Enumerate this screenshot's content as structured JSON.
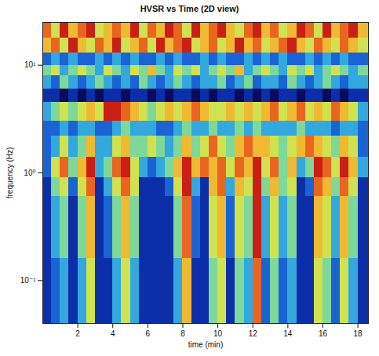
{
  "chart_data": {
    "type": "heatmap",
    "title": "HVSR vs Time (2D view)",
    "x_label": "time (min)",
    "y_label": "frequency (Hz)",
    "log": "y",
    "xlim": [
      0,
      18.6
    ],
    "ylim": [
      0.04,
      25
    ],
    "xticks": [
      2,
      4,
      6,
      8,
      10,
      12,
      14,
      16,
      18
    ],
    "yticks": [
      {
        "value": 0.1,
        "label": "10⁻¹"
      },
      {
        "value": 1,
        "label": "10⁰"
      },
      {
        "value": 10,
        "label": "10¹"
      }
    ],
    "zlim": [
      0,
      9
    ],
    "x_edges": [
      0,
      0.5,
      1,
      1.5,
      2,
      2.5,
      3,
      3.5,
      4,
      4.5,
      5,
      5.5,
      6,
      6.5,
      7,
      7.5,
      8,
      8.5,
      9,
      9.5,
      10,
      10.5,
      11,
      11.5,
      12,
      12.5,
      13,
      13.5,
      14,
      14.5,
      15,
      15.5,
      16,
      16.5,
      17,
      17.5,
      18,
      18.6
    ],
    "y_edges": [
      0.04,
      0.06,
      0.1,
      0.16,
      0.25,
      0.4,
      0.6,
      0.9,
      1.4,
      2.2,
      3,
      4.5,
      6,
      8,
      10,
      13,
      18,
      25
    ],
    "values": [
      [
        1,
        2,
        3,
        1,
        3,
        5,
        1,
        1,
        3,
        5,
        3,
        1,
        1,
        1,
        1,
        3,
        6,
        1,
        1,
        4,
        5,
        1,
        4,
        3,
        7,
        2,
        4,
        2,
        3,
        1,
        1,
        5,
        4,
        2,
        5,
        3,
        1
      ],
      [
        1,
        2,
        3,
        1,
        3,
        5,
        1,
        1,
        3,
        5,
        3,
        1,
        1,
        1,
        1,
        3,
        6,
        1,
        1,
        4,
        5,
        1,
        4,
        3,
        7,
        2,
        4,
        2,
        3,
        1,
        1,
        5,
        4,
        2,
        5,
        3,
        1
      ],
      [
        1,
        2,
        3,
        1,
        3,
        5,
        1,
        1,
        3,
        5,
        3,
        1,
        1,
        1,
        1,
        3,
        6,
        1,
        1,
        4,
        5,
        1,
        4,
        3,
        7,
        2,
        4,
        2,
        3,
        1,
        1,
        5,
        4,
        2,
        5,
        3,
        1
      ],
      [
        1,
        3,
        4,
        1,
        4,
        6,
        1,
        2,
        4,
        6,
        4,
        1,
        1,
        1,
        1,
        4,
        7,
        2,
        1,
        5,
        6,
        2,
        5,
        4,
        8,
        3,
        5,
        3,
        4,
        1,
        1,
        6,
        5,
        3,
        6,
        4,
        1
      ],
      [
        1,
        3,
        4,
        1,
        4,
        6,
        1,
        2,
        4,
        6,
        4,
        1,
        1,
        1,
        1,
        4,
        7,
        2,
        1,
        5,
        6,
        2,
        5,
        4,
        8,
        3,
        5,
        3,
        4,
        1,
        1,
        6,
        5,
        3,
        6,
        4,
        1
      ],
      [
        1,
        3,
        4,
        1,
        4,
        6,
        1,
        2,
        4,
        6,
        4,
        1,
        1,
        1,
        1,
        4,
        7,
        2,
        1,
        5,
        6,
        2,
        5,
        4,
        8,
        3,
        5,
        3,
        4,
        1,
        1,
        6,
        5,
        3,
        6,
        4,
        1
      ],
      [
        1,
        4,
        5,
        2,
        5,
        7,
        1,
        3,
        5,
        7,
        5,
        1,
        1,
        1,
        2,
        5,
        8,
        3,
        1,
        6,
        7,
        3,
        6,
        5,
        8,
        4,
        6,
        4,
        5,
        1,
        2,
        7,
        6,
        4,
        7,
        5,
        1
      ],
      [
        2,
        5,
        7,
        4,
        6,
        8,
        3,
        4,
        7,
        8,
        5,
        3,
        2,
        3,
        4,
        6,
        8,
        6,
        7,
        6,
        7,
        5,
        7,
        6,
        8,
        5,
        7,
        4,
        6,
        3,
        4,
        8,
        7,
        5,
        8,
        6,
        3
      ],
      [
        2,
        3,
        5,
        3,
        4,
        6,
        3,
        3,
        5,
        6,
        4,
        4,
        5,
        4,
        3,
        4,
        6,
        4,
        5,
        7,
        5,
        4,
        6,
        7,
        6,
        6,
        5,
        4,
        5,
        6,
        7,
        6,
        5,
        4,
        6,
        5,
        2
      ],
      [
        2,
        2,
        3,
        2,
        3,
        3,
        2,
        2,
        3,
        4,
        3,
        3,
        3,
        2,
        2,
        3,
        4,
        3,
        3,
        4,
        3,
        3,
        4,
        3,
        4,
        3,
        3,
        3,
        3,
        4,
        3,
        3,
        3,
        2,
        3,
        3,
        2
      ],
      [
        3,
        4,
        5,
        4,
        5,
        6,
        5,
        8,
        8,
        7,
        6,
        5,
        4,
        5,
        6,
        5,
        6,
        7,
        6,
        5,
        5,
        6,
        5,
        6,
        5,
        6,
        7,
        5,
        6,
        7,
        5,
        6,
        5,
        7,
        6,
        5,
        3
      ],
      [
        1,
        1,
        0,
        1,
        0,
        1,
        0,
        1,
        1,
        0,
        1,
        1,
        0,
        1,
        0,
        1,
        1,
        0,
        1,
        0,
        1,
        1,
        0,
        1,
        0,
        1,
        0,
        1,
        1,
        0,
        1,
        1,
        0,
        1,
        0,
        1,
        1
      ],
      [
        3,
        2,
        4,
        3,
        2,
        3,
        4,
        3,
        2,
        3,
        2,
        4,
        3,
        2,
        3,
        4,
        3,
        2,
        3,
        3,
        4,
        2,
        3,
        4,
        2,
        3,
        3,
        2,
        4,
        3,
        2,
        3,
        4,
        3,
        2,
        3,
        3
      ],
      [
        4,
        5,
        3,
        4,
        5,
        4,
        3,
        5,
        4,
        3,
        5,
        4,
        6,
        4,
        3,
        5,
        4,
        5,
        3,
        4,
        5,
        4,
        6,
        3,
        4,
        5,
        4,
        3,
        5,
        4,
        5,
        3,
        4,
        5,
        4,
        3,
        4
      ],
      [
        2,
        3,
        2,
        3,
        2,
        2,
        3,
        2,
        3,
        2,
        3,
        2,
        2,
        3,
        2,
        3,
        2,
        2,
        3,
        2,
        3,
        2,
        2,
        3,
        2,
        3,
        2,
        3,
        2,
        2,
        3,
        2,
        3,
        2,
        3,
        2,
        2
      ],
      [
        6,
        7,
        5,
        8,
        6,
        5,
        7,
        6,
        8,
        5,
        6,
        7,
        5,
        8,
        6,
        7,
        8,
        5,
        6,
        7,
        5,
        6,
        8,
        6,
        7,
        5,
        6,
        7,
        8,
        6,
        5,
        7,
        6,
        5,
        7,
        6,
        5
      ],
      [
        7,
        5,
        8,
        6,
        7,
        8,
        5,
        6,
        7,
        6,
        8,
        5,
        7,
        6,
        8,
        7,
        5,
        8,
        6,
        7,
        8,
        6,
        5,
        7,
        8,
        6,
        7,
        5,
        6,
        8,
        7,
        5,
        8,
        6,
        7,
        8,
        6
      ]
    ]
  }
}
